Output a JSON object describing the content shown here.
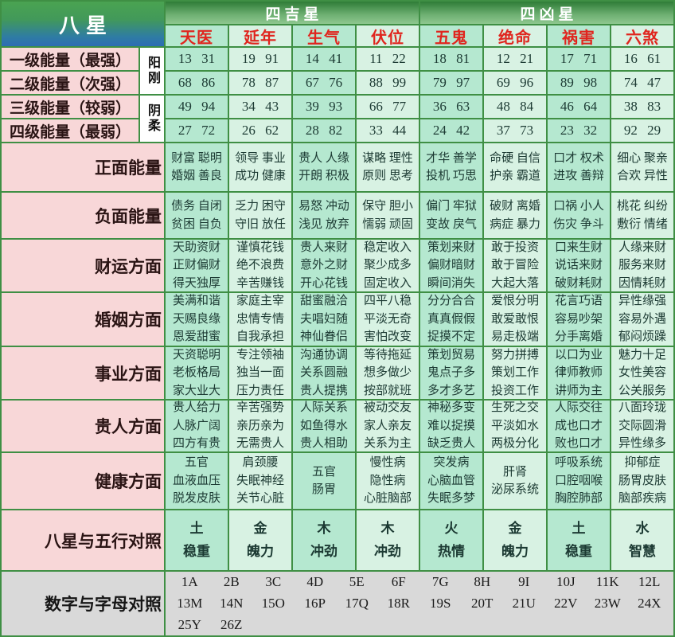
{
  "header": {
    "title": "八星",
    "groups": [
      {
        "label": "四吉星"
      },
      {
        "label": "四凶星"
      }
    ],
    "stars": [
      "天医",
      "延年",
      "生气",
      "伏位",
      "五鬼",
      "绝命",
      "祸害",
      "六煞"
    ]
  },
  "side_labels": {
    "yang": "阳刚",
    "yin": "阴柔"
  },
  "energy_rows": [
    {
      "label": "一级能量（最强）",
      "values": [
        "13 31",
        "19 91",
        "14 41",
        "11 22",
        "18 81",
        "12 21",
        "17 71",
        "16 61"
      ]
    },
    {
      "label": "二级能量（次强）",
      "values": [
        "68 86",
        "78 87",
        "67 76",
        "88 99",
        "79 97",
        "69 96",
        "89 98",
        "74 47"
      ]
    },
    {
      "label": "三级能量（较弱）",
      "values": [
        "49 94",
        "34 43",
        "39 93",
        "66 77",
        "36 63",
        "48 84",
        "46 64",
        "38 83"
      ]
    },
    {
      "label": "四级能量（最弱）",
      "values": [
        "27 72",
        "26 62",
        "28 82",
        "33 44",
        "24 42",
        "37 73",
        "23 32",
        "92 29"
      ]
    }
  ],
  "aspect_rows": [
    {
      "label": "正面能量",
      "cells": [
        [
          "财富 聪明",
          "婚姻 善良"
        ],
        [
          "领导 事业",
          "成功 健康"
        ],
        [
          "贵人 人缘",
          "开朗 积极"
        ],
        [
          "谋略 理性",
          "原则 思考"
        ],
        [
          "才华 善学",
          "投机 巧思"
        ],
        [
          "命硬 自信",
          "护亲 霸道"
        ],
        [
          "口才 权术",
          "进攻 善辩"
        ],
        [
          "细心 聚亲",
          "合欢 异性"
        ]
      ]
    },
    {
      "label": "负面能量",
      "cells": [
        [
          "债务 自闭",
          "贫困 自负"
        ],
        [
          "乏力 困守",
          "守旧 放任"
        ],
        [
          "易怒 冲动",
          "浅见 放弃"
        ],
        [
          "保守 胆小",
          "懦弱 顽固"
        ],
        [
          "偏门 牢狱",
          "变故 戾气"
        ],
        [
          "破财 离婚",
          "病症 暴力"
        ],
        [
          "口祸 小人",
          "伤灾 争斗"
        ],
        [
          "桃花 纠纷",
          "敷衍 情绪"
        ]
      ]
    },
    {
      "label": "财运方面",
      "cells": [
        [
          "天助资财",
          "正财偏财",
          "得天独厚"
        ],
        [
          "谨慎花钱",
          "绝不浪费",
          "辛苦赚钱"
        ],
        [
          "贵人来财",
          "意外之财",
          "开心花钱"
        ],
        [
          "稳定收入",
          "聚少成多",
          "固定收入"
        ],
        [
          "策划来财",
          "偏财暗财",
          "瞬间消失"
        ],
        [
          "敢于投资",
          "敢于冒险",
          "大起大落"
        ],
        [
          "口来生财",
          "说话来财",
          "破财耗财"
        ],
        [
          "人缘来财",
          "服务来财",
          "因情耗财"
        ]
      ]
    },
    {
      "label": "婚姻方面",
      "cells": [
        [
          "美满和谐",
          "天赐良缘",
          "恩爱甜蜜"
        ],
        [
          "家庭主宰",
          "忠情专情",
          "自我承担"
        ],
        [
          "甜蜜融洽",
          "夫唱妇随",
          "神仙眷侣"
        ],
        [
          "四平八稳",
          "平淡无奇",
          "害怕改变"
        ],
        [
          "分分合合",
          "真真假假",
          "捉摸不定"
        ],
        [
          "爱恨分明",
          "敢爱敢恨",
          "易走极端"
        ],
        [
          "花言巧语",
          "容易吵架",
          "分手离婚"
        ],
        [
          "异性缘强",
          "容易外遇",
          "郁闷烦躁"
        ]
      ]
    },
    {
      "label": "事业方面",
      "cells": [
        [
          "天资聪明",
          "老板格局",
          "家大业大"
        ],
        [
          "专注领袖",
          "独当一面",
          "压力责任"
        ],
        [
          "沟通协调",
          "关系圆融",
          "贵人提携"
        ],
        [
          "等待拖延",
          "想多做少",
          "按部就班"
        ],
        [
          "策划贸易",
          "鬼点子多",
          "多才多艺"
        ],
        [
          "努力拼搏",
          "策划工作",
          "投资工作"
        ],
        [
          "以口为业",
          "律师教师",
          "讲师为主"
        ],
        [
          "魅力十足",
          "女性美容",
          "公关服务"
        ]
      ]
    },
    {
      "label": "贵人方面",
      "cells": [
        [
          "贵人给力",
          "人脉广阔",
          "四方有贵"
        ],
        [
          "辛苦强势",
          "亲历亲为",
          "无需贵人"
        ],
        [
          "人际关系",
          "如鱼得水",
          "贵人相助"
        ],
        [
          "被动交友",
          "家人亲友",
          "关系为主"
        ],
        [
          "神秘多变",
          "难以捉摸",
          "缺乏贵人"
        ],
        [
          "生死之交",
          "平淡如水",
          "两极分化"
        ],
        [
          "人际交往",
          "成也口才",
          "败也口才"
        ],
        [
          "八面玲珑",
          "交际圆滑",
          "异性缘多"
        ]
      ]
    },
    {
      "label": "健康方面",
      "cells": [
        [
          "五官",
          "血液血压",
          "脱发皮肤"
        ],
        [
          "肩颈腰",
          "失眠神经",
          "关节心脏"
        ],
        [
          "五官",
          "肠胃"
        ],
        [
          "慢性病",
          "隐性病",
          "心脏脑部"
        ],
        [
          "突发病",
          "心脑血管",
          "失眠多梦"
        ],
        [
          "肝肾",
          "泌尿系统"
        ],
        [
          "呼吸系统",
          "口腔咽喉",
          "胸腔肺部"
        ],
        [
          "抑郁症",
          "肠胃皮肤",
          "脑部疾病"
        ]
      ]
    },
    {
      "label": "八星与五行对照",
      "cells": [
        [
          "土",
          "稳重"
        ],
        [
          "金",
          "魄力"
        ],
        [
          "木",
          "冲劲"
        ],
        [
          "木",
          "冲劲"
        ],
        [
          "火",
          "热情"
        ],
        [
          "金",
          "魄力"
        ],
        [
          "土",
          "稳重"
        ],
        [
          "水",
          "智慧"
        ]
      ]
    }
  ],
  "letter_row": {
    "label": "数字与字母对照",
    "lines": [
      [
        "1A",
        "2B",
        "3C",
        "4D",
        "5E",
        "6F",
        "7G",
        "8H",
        "9I",
        "10J",
        "11K",
        "12L"
      ],
      [
        "13M",
        "14N",
        "15O",
        "16P",
        "17Q",
        "18R",
        "19S",
        "20T",
        "21U",
        "22V",
        "23W",
        "24X"
      ],
      [
        "25Y",
        "26Z"
      ]
    ]
  },
  "colors": {
    "border_green": "#3f8f44",
    "label_pink": "#f8d7d8",
    "column_mint": "#b5e8d0",
    "column_light_mint": "#d8f2e3",
    "header_green": "#2e7c37",
    "title_blue": "#2d6cb4",
    "star_red": "#e0251e",
    "bottom_gray": "#d9d9d9"
  }
}
